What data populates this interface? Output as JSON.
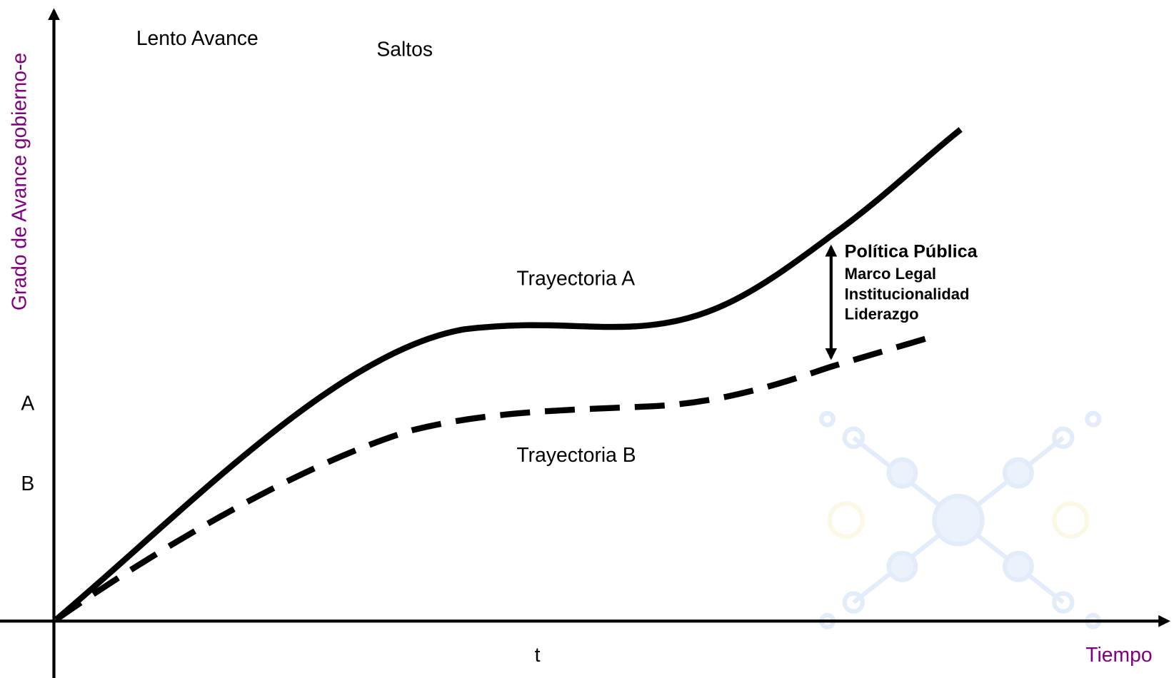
{
  "top_labels": [
    "Lento Avance",
    "Saltos"
  ],
  "y_axis_label": "Grado de Avance gobierno-e",
  "x_axis_label": "Tiempo",
  "x_marker": "t",
  "y_markers": [
    "A",
    "B"
  ],
  "curves": [
    "Trayectoria A",
    "Trayectoria B"
  ],
  "gap_factors": {
    "title": "Política Pública",
    "items": [
      "Marco Legal",
      "Institucionalidad",
      "Liderazgo"
    ]
  }
}
